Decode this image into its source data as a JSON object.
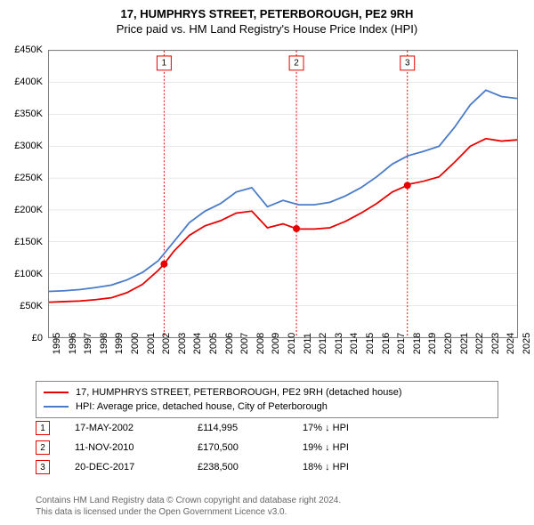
{
  "title": "17, HUMPHRYS STREET, PETERBOROUGH, PE2 9RH",
  "subtitle": "Price paid vs. HM Land Registry's House Price Index (HPI)",
  "chart": {
    "type": "line",
    "background_color": "#ffffff",
    "grid_color": "#d0d0d0",
    "border_color": "#808080",
    "x": {
      "min": 1995,
      "max": 2025,
      "step": 1
    },
    "y": {
      "min": 0,
      "max": 450000,
      "step": 50000,
      "prefix": "£",
      "suffix": "K",
      "divide": 1000
    },
    "series": [
      {
        "name": "17, HUMPHRYS STREET, PETERBOROUGH, PE2 9RH (detached house)",
        "color": "#e60000",
        "line_width": 1.8,
        "points": [
          [
            1995,
            55000
          ],
          [
            1996,
            56000
          ],
          [
            1997,
            57000
          ],
          [
            1998,
            59000
          ],
          [
            1999,
            62000
          ],
          [
            2000,
            70000
          ],
          [
            2001,
            83000
          ],
          [
            2002,
            105000
          ],
          [
            2002.38,
            114995
          ],
          [
            2003,
            135000
          ],
          [
            2004,
            160000
          ],
          [
            2005,
            175000
          ],
          [
            2006,
            183000
          ],
          [
            2007,
            195000
          ],
          [
            2008,
            198000
          ],
          [
            2009,
            172000
          ],
          [
            2010,
            178000
          ],
          [
            2010.86,
            170500
          ],
          [
            2011,
            170000
          ],
          [
            2012,
            170000
          ],
          [
            2013,
            172000
          ],
          [
            2014,
            182000
          ],
          [
            2015,
            195000
          ],
          [
            2016,
            210000
          ],
          [
            2017,
            228000
          ],
          [
            2017.97,
            238500
          ],
          [
            2018,
            240000
          ],
          [
            2019,
            245000
          ],
          [
            2020,
            252000
          ],
          [
            2021,
            275000
          ],
          [
            2022,
            300000
          ],
          [
            2023,
            312000
          ],
          [
            2024,
            308000
          ],
          [
            2025,
            310000
          ]
        ]
      },
      {
        "name": "HPI: Average price, detached house, City of Peterborough",
        "color": "#4a7bc8",
        "line_width": 1.8,
        "points": [
          [
            1995,
            72000
          ],
          [
            1996,
            73000
          ],
          [
            1997,
            75000
          ],
          [
            1998,
            78000
          ],
          [
            1999,
            82000
          ],
          [
            2000,
            90000
          ],
          [
            2001,
            102000
          ],
          [
            2002,
            120000
          ],
          [
            2003,
            150000
          ],
          [
            2004,
            180000
          ],
          [
            2005,
            198000
          ],
          [
            2006,
            210000
          ],
          [
            2007,
            228000
          ],
          [
            2008,
            235000
          ],
          [
            2009,
            205000
          ],
          [
            2010,
            215000
          ],
          [
            2011,
            208000
          ],
          [
            2012,
            208000
          ],
          [
            2013,
            212000
          ],
          [
            2014,
            222000
          ],
          [
            2015,
            235000
          ],
          [
            2016,
            252000
          ],
          [
            2017,
            272000
          ],
          [
            2018,
            285000
          ],
          [
            2019,
            292000
          ],
          [
            2020,
            300000
          ],
          [
            2021,
            330000
          ],
          [
            2022,
            365000
          ],
          [
            2023,
            388000
          ],
          [
            2024,
            378000
          ],
          [
            2025,
            375000
          ]
        ]
      }
    ],
    "markers": [
      {
        "n": "1",
        "x": 2002.38,
        "y": 114995,
        "color": "#e60000"
      },
      {
        "n": "2",
        "x": 2010.86,
        "y": 170500,
        "color": "#e60000"
      },
      {
        "n": "3",
        "x": 2017.97,
        "y": 238500,
        "color": "#e60000"
      }
    ]
  },
  "sales": [
    {
      "n": "1",
      "date": "17-MAY-2002",
      "price": "£114,995",
      "diff": "17% ↓ HPI",
      "color": "#e60000"
    },
    {
      "n": "2",
      "date": "11-NOV-2010",
      "price": "£170,500",
      "diff": "19% ↓ HPI",
      "color": "#e60000"
    },
    {
      "n": "3",
      "date": "20-DEC-2017",
      "price": "£238,500",
      "diff": "18% ↓ HPI",
      "color": "#e60000"
    }
  ],
  "attribution": {
    "line1": "Contains HM Land Registry data © Crown copyright and database right 2024.",
    "line2": "This data is licensed under the Open Government Licence v3.0.",
    "color": "#666666"
  }
}
